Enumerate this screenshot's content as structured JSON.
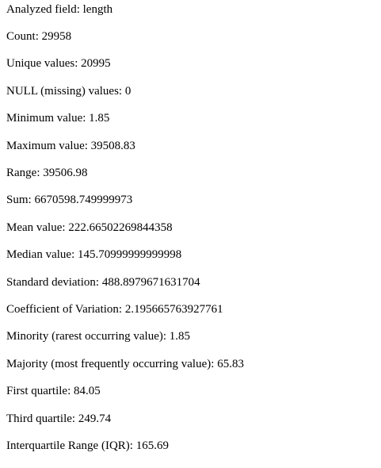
{
  "statistics": [
    {
      "label": "Analyzed field",
      "value": "length"
    },
    {
      "label": "Count",
      "value": "29958"
    },
    {
      "label": "Unique values",
      "value": "20995"
    },
    {
      "label": "NULL (missing) values",
      "value": "0"
    },
    {
      "label": "Minimum value",
      "value": "1.85"
    },
    {
      "label": "Maximum value",
      "value": "39508.83"
    },
    {
      "label": "Range",
      "value": "39506.98"
    },
    {
      "label": "Sum",
      "value": "6670598.749999973"
    },
    {
      "label": "Mean value",
      "value": "222.66502269844358"
    },
    {
      "label": "Median value",
      "value": "145.70999999999998"
    },
    {
      "label": "Standard deviation",
      "value": "488.8979671631704"
    },
    {
      "label": "Coefficient of Variation",
      "value": "2.195665763927761"
    },
    {
      "label": "Minority (rarest occurring value)",
      "value": "1.85"
    },
    {
      "label": "Majority (most frequently occurring value)",
      "value": "65.83"
    },
    {
      "label": "First quartile",
      "value": "84.05"
    },
    {
      "label": "Third quartile",
      "value": "249.74"
    },
    {
      "label": "Interquartile Range (IQR)",
      "value": "165.69"
    }
  ]
}
